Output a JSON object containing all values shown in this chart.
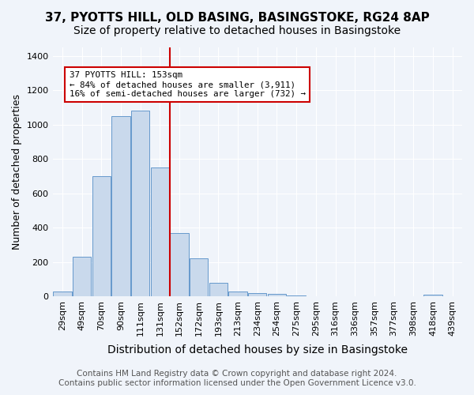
{
  "title": "37, PYOTTS HILL, OLD BASING, BASINGSTOKE, RG24 8AP",
  "subtitle": "Size of property relative to detached houses in Basingstoke",
  "xlabel": "Distribution of detached houses by size in Basingstoke",
  "ylabel": "Number of detached properties",
  "footer_line1": "Contains HM Land Registry data © Crown copyright and database right 2024.",
  "footer_line2": "Contains public sector information licensed under the Open Government Licence v3.0.",
  "bins": [
    "29sqm",
    "49sqm",
    "70sqm",
    "90sqm",
    "111sqm",
    "131sqm",
    "152sqm",
    "172sqm",
    "193sqm",
    "213sqm",
    "234sqm",
    "254sqm",
    "275sqm",
    "295sqm",
    "316sqm",
    "336sqm",
    "357sqm",
    "377sqm",
    "398sqm",
    "418sqm",
    "439sqm"
  ],
  "values": [
    29,
    230,
    700,
    1050,
    1080,
    750,
    370,
    220,
    80,
    28,
    18,
    15,
    5,
    0,
    0,
    0,
    0,
    0,
    0,
    8,
    0
  ],
  "bar_color": "#c9d9ec",
  "bar_edge_color": "#6699cc",
  "annotation_text": "37 PYOTTS HILL: 153sqm\n← 84% of detached houses are smaller (3,911)\n16% of semi-detached houses are larger (732) →",
  "annotation_box_color": "#ffffff",
  "annotation_box_edge_color": "#cc0000",
  "vline_color": "#cc0000",
  "vline_x": 5.5,
  "ylim": [
    0,
    1450
  ],
  "yticks": [
    0,
    200,
    400,
    600,
    800,
    1000,
    1200,
    1400
  ],
  "title_fontsize": 11,
  "subtitle_fontsize": 10,
  "xlabel_fontsize": 10,
  "ylabel_fontsize": 9,
  "tick_fontsize": 8,
  "footer_fontsize": 7.5,
  "background_color": "#f0f4fa"
}
